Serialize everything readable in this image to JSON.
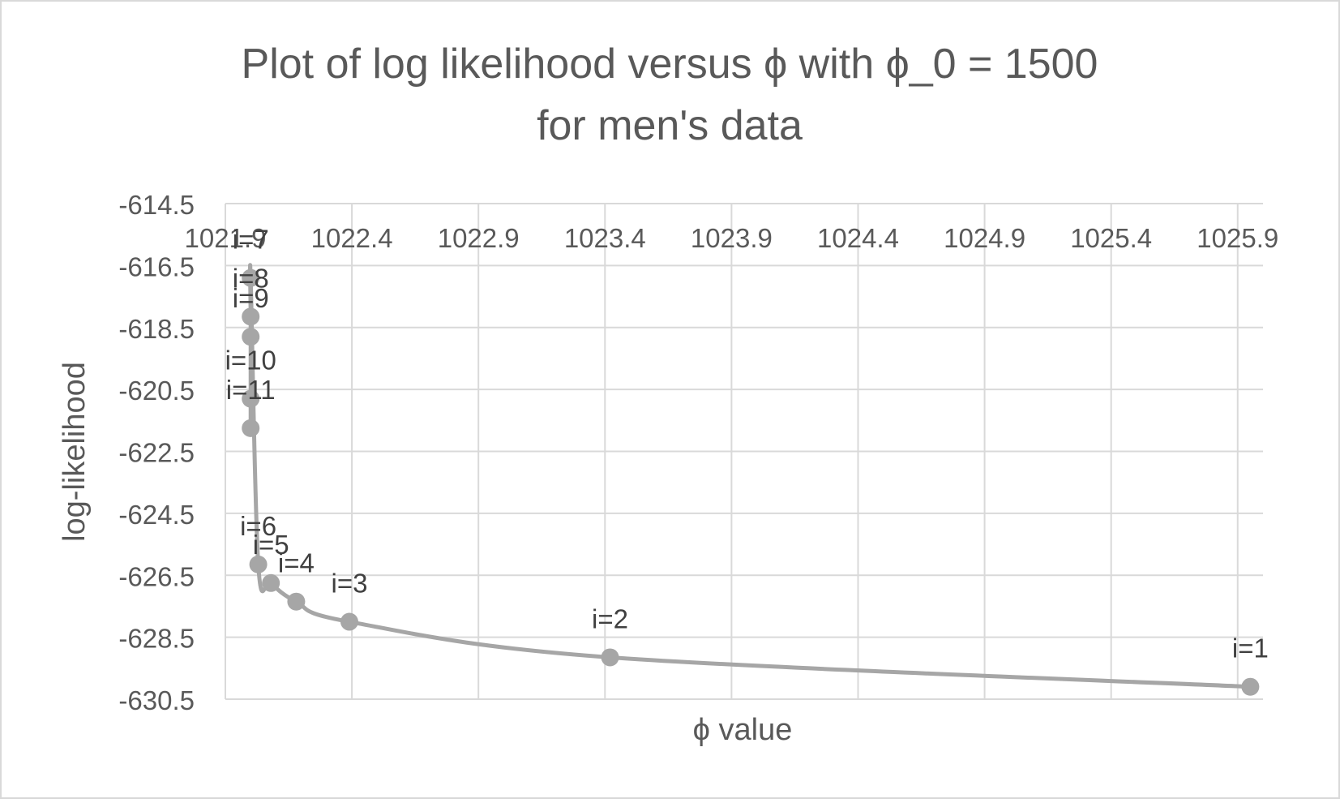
{
  "chart_data": {
    "type": "scatter",
    "title_lines": [
      "Plot of log likelihood versus ϕ with ϕ_0 = 1500",
      "for men's data"
    ],
    "xlabel": "ϕ value",
    "ylabel": "log-likelihood",
    "xlim": [
      1021.9,
      1026.0
    ],
    "ylim": [
      -630.5,
      -614.5
    ],
    "x_ticks": [
      "1021.9",
      "1022.4",
      "1022.9",
      "1023.4",
      "1023.9",
      "1024.4",
      "1024.9",
      "1025.4",
      "1025.9"
    ],
    "y_ticks": [
      "-614.5",
      "-616.5",
      "-618.5",
      "-620.5",
      "-622.5",
      "-624.5",
      "-626.5",
      "-628.5",
      "-630.5"
    ],
    "x_axis_position": "top",
    "grid": true,
    "legend": "none",
    "series_color": "#a6a6a6",
    "smooth_line": true,
    "points": [
      {
        "label": "i=1",
        "x": 1025.95,
        "y": -630.1
      },
      {
        "label": "i=2",
        "x": 1023.42,
        "y": -629.15
      },
      {
        "label": "i=3",
        "x": 1022.39,
        "y": -628.0
      },
      {
        "label": "i=4",
        "x": 1022.18,
        "y": -627.35
      },
      {
        "label": "i=5",
        "x": 1022.08,
        "y": -626.75
      },
      {
        "label": "i=6",
        "x": 1022.03,
        "y": -626.15
      },
      {
        "label": "i=7",
        "x": 1022.0,
        "y": -616.9
      },
      {
        "label": "i=8",
        "x": 1022.0,
        "y": -618.15
      },
      {
        "label": "i=9",
        "x": 1022.0,
        "y": -618.8
      },
      {
        "label": "i=10",
        "x": 1022.0,
        "y": -620.8
      },
      {
        "label": "i=11",
        "x": 1022.0,
        "y": -621.75
      }
    ]
  }
}
